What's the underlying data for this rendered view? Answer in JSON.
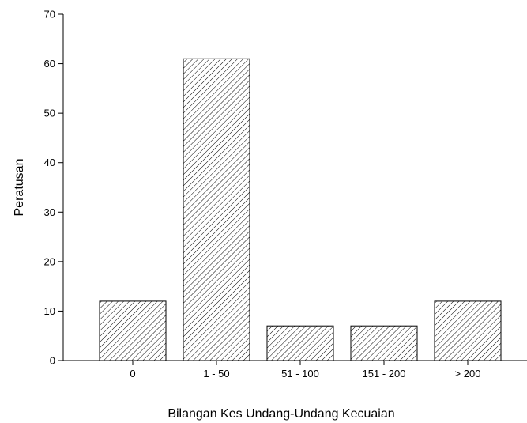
{
  "chart_data": {
    "type": "bar",
    "categories": [
      "0",
      "1 - 50",
      "51 - 100",
      "151 - 200",
      "> 200"
    ],
    "values": [
      12,
      61,
      7,
      7,
      12
    ],
    "title": "",
    "xlabel": "Bilangan Kes Undang-Undang Kecuaian",
    "ylabel": "Peratusan",
    "ylim": [
      0,
      70
    ],
    "yticks": [
      0,
      10,
      20,
      30,
      40,
      50,
      60,
      70
    ],
    "bar_fill": "diagonal-hatch",
    "bar_color": "#ffffff",
    "line_color": "#000000",
    "grid": false,
    "legend": "none"
  }
}
